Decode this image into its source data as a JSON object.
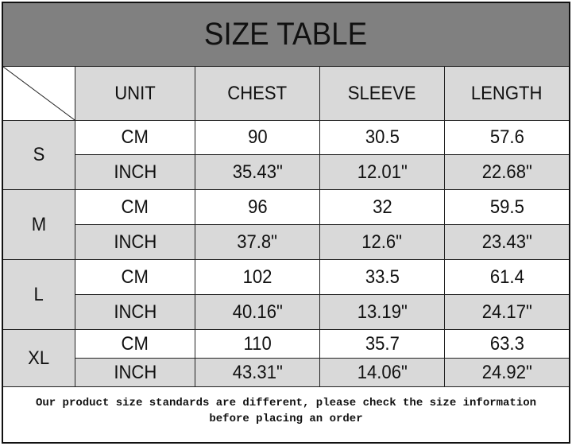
{
  "title": "SIZE TABLE",
  "headers": [
    "UNIT",
    "CHEST",
    "SLEEVE",
    "LENGTH"
  ],
  "rows": [
    {
      "size": "S",
      "cm": {
        "unit": "CM",
        "chest": "90",
        "sleeve": "30.5",
        "length": "57.6"
      },
      "inch": {
        "unit": "INCH",
        "chest": "35.43\"",
        "sleeve": "12.01\"",
        "length": "22.68\""
      }
    },
    {
      "size": "M",
      "cm": {
        "unit": "CM",
        "chest": "96",
        "sleeve": "32",
        "length": "59.5"
      },
      "inch": {
        "unit": "INCH",
        "chest": "37.8\"",
        "sleeve": "12.6\"",
        "length": "23.43\""
      }
    },
    {
      "size": "L",
      "cm": {
        "unit": "CM",
        "chest": "102",
        "sleeve": "33.5",
        "length": "61.4"
      },
      "inch": {
        "unit": "INCH",
        "chest": "40.16\"",
        "sleeve": "13.19\"",
        "length": "24.17\""
      }
    },
    {
      "size": "XL",
      "cm": {
        "unit": "CM",
        "chest": "110",
        "sleeve": "35.7",
        "length": "63.3"
      },
      "inch": {
        "unit": "INCH",
        "chest": "43.31\"",
        "sleeve": "14.06\"",
        "length": "24.92\""
      }
    }
  ],
  "note": {
    "line1": "Our product size standards are different, please check the size information",
    "line2": "before placing an order"
  },
  "colors": {
    "title_bg": "#808080",
    "header_bg": "#d9d9d9",
    "inch_row_bg": "#d9d9d9",
    "cm_row_bg": "#ffffff"
  }
}
